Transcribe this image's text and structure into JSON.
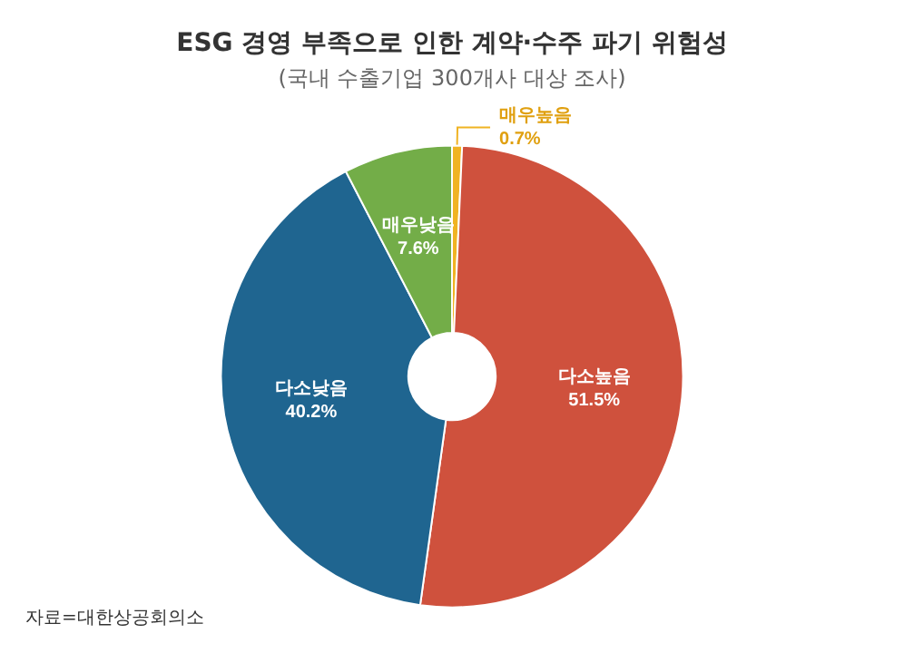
{
  "chart_data": {
    "type": "donut",
    "title": "ESG 경영 부족으로 인한 계약·수주 파기 위험성",
    "subtitle": "(국내 수출기업 300개사 대상 조사)",
    "categories": [
      "매우높음",
      "다소높음",
      "다소낮음",
      "매우낮음"
    ],
    "values": [
      0.7,
      51.5,
      40.2,
      7.6
    ],
    "colors": [
      "#f0b323",
      "#cf513d",
      "#1f6590",
      "#73ad48"
    ],
    "value_labels": [
      "0.7%",
      "51.5%",
      "40.2%",
      "7.6%"
    ],
    "legend": false,
    "annotations": [
      "자료=대한상공회의소"
    ]
  }
}
